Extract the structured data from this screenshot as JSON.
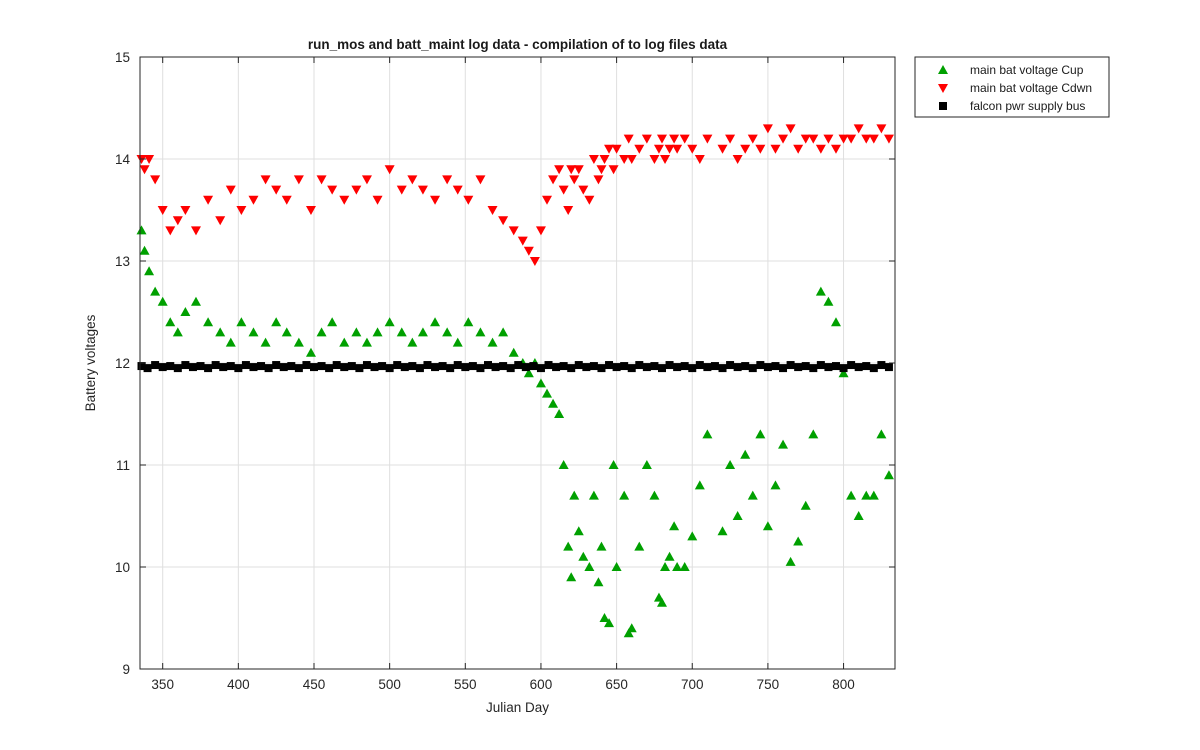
{
  "chart_data": {
    "type": "scatter",
    "title": "run_mos and batt_maint log data - compilation of to log files data",
    "xlabel": "Julian Day",
    "ylabel": "Battery voltages",
    "xlim": [
      335,
      834
    ],
    "ylim": [
      9,
      15
    ],
    "xticks": [
      350,
      400,
      450,
      500,
      550,
      600,
      650,
      700,
      750,
      800
    ],
    "yticks": [
      9,
      10,
      11,
      12,
      13,
      14,
      15
    ],
    "grid": true,
    "legend_position": "outside-top-right",
    "series": [
      {
        "name": "main bat voltage Cup",
        "marker": "triangle-up",
        "color": "#00a000",
        "x": [
          336,
          338,
          341,
          345,
          350,
          355,
          360,
          365,
          372,
          380,
          388,
          395,
          402,
          410,
          418,
          425,
          432,
          440,
          448,
          455,
          462,
          470,
          478,
          485,
          492,
          500,
          508,
          515,
          522,
          530,
          538,
          545,
          552,
          560,
          568,
          575,
          582,
          588,
          592,
          596,
          600,
          604,
          608,
          612,
          615,
          618,
          620,
          622,
          625,
          628,
          632,
          635,
          638,
          640,
          642,
          645,
          648,
          650,
          655,
          658,
          660,
          665,
          670,
          675,
          678,
          680,
          682,
          685,
          688,
          690,
          695,
          700,
          705,
          710,
          720,
          725,
          730,
          735,
          740,
          745,
          750,
          755,
          760,
          765,
          770,
          775,
          780,
          785,
          790,
          795,
          800,
          805,
          810,
          815,
          820,
          825,
          830
        ],
        "y": [
          13.3,
          13.1,
          12.9,
          12.7,
          12.6,
          12.4,
          12.3,
          12.5,
          12.6,
          12.4,
          12.3,
          12.2,
          12.4,
          12.3,
          12.2,
          12.4,
          12.3,
          12.2,
          12.1,
          12.3,
          12.4,
          12.2,
          12.3,
          12.2,
          12.3,
          12.4,
          12.3,
          12.2,
          12.3,
          12.4,
          12.3,
          12.2,
          12.4,
          12.3,
          12.2,
          12.3,
          12.1,
          12.0,
          11.9,
          12.0,
          11.8,
          11.7,
          11.6,
          11.5,
          11.0,
          10.2,
          9.9,
          10.7,
          10.35,
          10.1,
          10.0,
          10.7,
          9.85,
          10.2,
          9.5,
          9.45,
          11.0,
          10.0,
          10.7,
          9.35,
          9.4,
          10.2,
          11.0,
          10.7,
          9.7,
          9.65,
          10.0,
          10.1,
          10.4,
          10.0,
          10.0,
          10.3,
          10.8,
          11.3,
          10.35,
          11.0,
          10.5,
          11.1,
          10.7,
          11.3,
          10.4,
          10.8,
          11.2,
          10.05,
          10.25,
          10.6,
          11.3,
          12.7,
          12.6,
          12.4,
          11.9,
          10.7,
          10.5,
          10.7,
          10.7,
          11.3,
          10.9
        ]
      },
      {
        "name": "main bat voltage Cdwn",
        "marker": "triangle-down",
        "color": "#ff0000",
        "x": [
          336,
          338,
          341,
          345,
          350,
          355,
          360,
          365,
          372,
          380,
          388,
          395,
          402,
          410,
          418,
          425,
          432,
          440,
          448,
          455,
          462,
          470,
          478,
          485,
          492,
          500,
          508,
          515,
          522,
          530,
          538,
          545,
          552,
          560,
          568,
          575,
          582,
          588,
          592,
          596,
          600,
          604,
          608,
          612,
          615,
          618,
          620,
          622,
          625,
          628,
          632,
          635,
          638,
          640,
          642,
          645,
          648,
          650,
          655,
          658,
          660,
          665,
          670,
          675,
          678,
          680,
          682,
          685,
          688,
          690,
          695,
          700,
          705,
          710,
          720,
          725,
          730,
          735,
          740,
          745,
          750,
          755,
          760,
          765,
          770,
          775,
          780,
          785,
          790,
          795,
          800,
          805,
          810,
          815,
          820,
          825,
          830
        ],
        "y": [
          14.0,
          13.9,
          14.0,
          13.8,
          13.5,
          13.3,
          13.4,
          13.5,
          13.3,
          13.6,
          13.4,
          13.7,
          13.5,
          13.6,
          13.8,
          13.7,
          13.6,
          13.8,
          13.5,
          13.8,
          13.7,
          13.6,
          13.7,
          13.8,
          13.6,
          13.9,
          13.7,
          13.8,
          13.7,
          13.6,
          13.8,
          13.7,
          13.6,
          13.8,
          13.5,
          13.4,
          13.3,
          13.2,
          13.1,
          13.0,
          13.3,
          13.6,
          13.8,
          13.9,
          13.7,
          13.5,
          13.9,
          13.8,
          13.9,
          13.7,
          13.6,
          14.0,
          13.8,
          13.9,
          14.0,
          14.1,
          13.9,
          14.1,
          14.0,
          14.2,
          14.0,
          14.1,
          14.2,
          14.0,
          14.1,
          14.2,
          14.0,
          14.1,
          14.2,
          14.1,
          14.2,
          14.1,
          14.0,
          14.2,
          14.1,
          14.2,
          14.0,
          14.1,
          14.2,
          14.1,
          14.3,
          14.1,
          14.2,
          14.3,
          14.1,
          14.2,
          14.2,
          14.1,
          14.2,
          14.1,
          14.2,
          14.2,
          14.3,
          14.2,
          14.2,
          14.3,
          14.2
        ]
      },
      {
        "name": "falcon pwr supply bus",
        "marker": "square",
        "color": "#000000",
        "x": [
          336,
          340,
          345,
          350,
          355,
          360,
          365,
          370,
          375,
          380,
          385,
          390,
          395,
          400,
          405,
          410,
          415,
          420,
          425,
          430,
          435,
          440,
          445,
          450,
          455,
          460,
          465,
          470,
          475,
          480,
          485,
          490,
          495,
          500,
          505,
          510,
          515,
          520,
          525,
          530,
          535,
          540,
          545,
          550,
          555,
          560,
          565,
          570,
          575,
          580,
          585,
          590,
          595,
          600,
          605,
          610,
          615,
          620,
          625,
          630,
          635,
          640,
          645,
          650,
          655,
          660,
          665,
          670,
          675,
          680,
          685,
          690,
          695,
          700,
          705,
          710,
          715,
          720,
          725,
          730,
          735,
          740,
          745,
          750,
          755,
          760,
          765,
          770,
          775,
          780,
          785,
          790,
          795,
          800,
          805,
          810,
          815,
          820,
          825,
          830
        ],
        "y": [
          11.97,
          11.95,
          11.98,
          11.96,
          11.97,
          11.95,
          11.98,
          11.96,
          11.97,
          11.95,
          11.98,
          11.96,
          11.97,
          11.95,
          11.98,
          11.96,
          11.97,
          11.95,
          11.98,
          11.96,
          11.97,
          11.95,
          11.98,
          11.96,
          11.97,
          11.95,
          11.98,
          11.96,
          11.97,
          11.95,
          11.98,
          11.96,
          11.97,
          11.95,
          11.98,
          11.96,
          11.97,
          11.95,
          11.98,
          11.96,
          11.97,
          11.95,
          11.98,
          11.96,
          11.97,
          11.95,
          11.98,
          11.96,
          11.97,
          11.95,
          11.98,
          11.96,
          11.97,
          11.95,
          11.98,
          11.96,
          11.97,
          11.95,
          11.98,
          11.96,
          11.97,
          11.95,
          11.98,
          11.96,
          11.97,
          11.95,
          11.98,
          11.96,
          11.97,
          11.95,
          11.98,
          11.96,
          11.97,
          11.95,
          11.98,
          11.96,
          11.97,
          11.95,
          11.98,
          11.96,
          11.97,
          11.95,
          11.98,
          11.96,
          11.97,
          11.95,
          11.98,
          11.96,
          11.97,
          11.95,
          11.98,
          11.96,
          11.97,
          11.95,
          11.98,
          11.96,
          11.97,
          11.95,
          11.98,
          11.96
        ]
      }
    ]
  }
}
